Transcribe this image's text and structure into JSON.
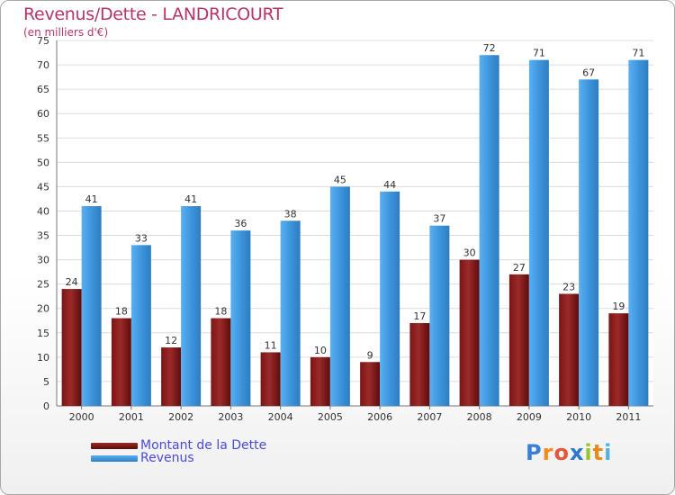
{
  "header": {
    "title": "Revenus/Dette - LANDRICOURT",
    "subtitle": "(en milliers d'€)"
  },
  "legend": {
    "debt_label": "Montant de la Dette",
    "revenue_label": "Revenus"
  },
  "logo": {
    "text": "Proxiti",
    "letters": [
      {
        "ch": "P",
        "color": "#3a7fd6"
      },
      {
        "ch": "r",
        "color": "#f08c1e"
      },
      {
        "ch": "o",
        "color": "#e4573b"
      },
      {
        "ch": "x",
        "color": "#2f77d0"
      },
      {
        "ch": "i",
        "color": "#9ac42f"
      },
      {
        "ch": "t",
        "color": "#e98a1f"
      },
      {
        "ch": "i",
        "color": "#4db3e0"
      }
    ]
  },
  "colors": {
    "debt": "#7a1515",
    "debt_light": "#9b2a2a",
    "revenue": "#3d95dc",
    "revenue_light": "#5aaff0",
    "title": "#b5356a",
    "legend_text": "#4a4adf"
  },
  "chart_data": {
    "type": "bar",
    "title": "Revenus/Dette - LANDRICOURT",
    "subtitle": "(en milliers d'€)",
    "categories": [
      "2000",
      "2001",
      "2002",
      "2003",
      "2004",
      "2005",
      "2006",
      "2007",
      "2008",
      "2009",
      "2010",
      "2011"
    ],
    "series": [
      {
        "name": "Montant de la Dette",
        "values": [
          24,
          18,
          12,
          18,
          11,
          10,
          9,
          17,
          30,
          27,
          23,
          19
        ]
      },
      {
        "name": "Revenus",
        "values": [
          41,
          33,
          41,
          36,
          38,
          45,
          44,
          37,
          72,
          71,
          67,
          71
        ]
      }
    ],
    "ylim": [
      0,
      75
    ],
    "yticks": [
      0,
      5,
      10,
      15,
      20,
      25,
      30,
      35,
      40,
      45,
      50,
      55,
      60,
      65,
      70,
      75
    ],
    "grid": true,
    "legend_position": "bottom-left"
  }
}
